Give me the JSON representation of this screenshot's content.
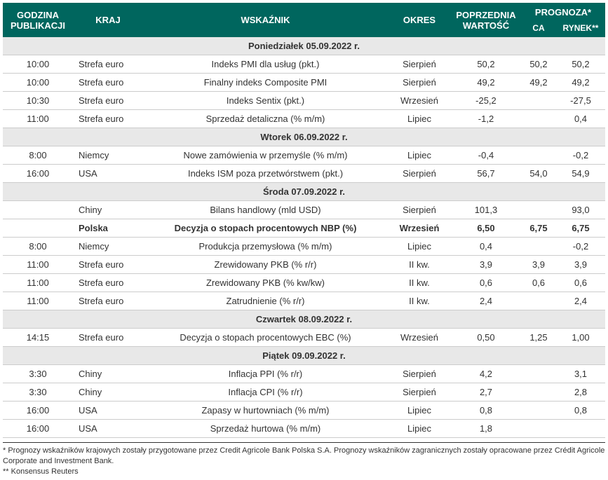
{
  "header": {
    "godzina": "GODZINA PUBLIKACJI",
    "kraj": "KRAJ",
    "wskaznik": "WSKAŹNIK",
    "okres": "OKRES",
    "poprzednia": "POPRZEDNIA WARTOŚĆ",
    "prognoza": "PROGNOZA*",
    "ca": "CA",
    "rynek": "RYNEK**"
  },
  "column_widths": {
    "godzina": "100px",
    "kraj": "100px",
    "wskaznik": "auto",
    "okres": "90px",
    "poprzednia": "100px",
    "ca": "50px",
    "rynek": "70px"
  },
  "colors": {
    "header_bg": "#00665e",
    "header_fg": "#ffffff",
    "section_bg": "#e8e8e8",
    "row_border": "#cccccc",
    "text": "#333333"
  },
  "sections": [
    {
      "title": "Poniedziałek 05.09.2022 r.",
      "rows": [
        {
          "godzina": "10:00",
          "kraj": "Strefa euro",
          "wskaznik": "Indeks PMI dla usług (pkt.)",
          "okres": "Sierpień",
          "poprzednia": "50,2",
          "ca": "50,2",
          "rynek": "50,2",
          "bold": false
        },
        {
          "godzina": "10:00",
          "kraj": "Strefa euro",
          "wskaznik": "Finalny indeks Composite PMI",
          "okres": "Sierpień",
          "poprzednia": "49,2",
          "ca": "49,2",
          "rynek": "49,2",
          "bold": false
        },
        {
          "godzina": "10:30",
          "kraj": "Strefa euro",
          "wskaznik": "Indeks Sentix (pkt.)",
          "okres": "Wrzesień",
          "poprzednia": "-25,2",
          "ca": "",
          "rynek": "-27,5",
          "bold": false
        },
        {
          "godzina": "11:00",
          "kraj": "Strefa euro",
          "wskaznik": "Sprzedaż detaliczna (% m/m)",
          "okres": "Lipiec",
          "poprzednia": "-1,2",
          "ca": "",
          "rynek": "0,4",
          "bold": false
        }
      ]
    },
    {
      "title": "Wtorek 06.09.2022 r.",
      "rows": [
        {
          "godzina": "8:00",
          "kraj": "Niemcy",
          "wskaznik": "Nowe zamówienia w przemyśle (% m/m)",
          "okres": "Lipiec",
          "poprzednia": "-0,4",
          "ca": "",
          "rynek": "-0,2",
          "bold": false
        },
        {
          "godzina": "16:00",
          "kraj": "USA",
          "wskaznik": "Indeks ISM poza przetwórstwem (pkt.)",
          "okres": "Sierpień",
          "poprzednia": "56,7",
          "ca": "54,0",
          "rynek": "54,9",
          "bold": false
        }
      ]
    },
    {
      "title": "Środa 07.09.2022 r.",
      "rows": [
        {
          "godzina": "",
          "kraj": "Chiny",
          "wskaznik": "Bilans handlowy (mld USD)",
          "okres": "Sierpień",
          "poprzednia": "101,3",
          "ca": "",
          "rynek": "93,0",
          "bold": false
        },
        {
          "godzina": "",
          "kraj": "Polska",
          "wskaznik": "Decyzja o stopach procentowych NBP (%)",
          "okres": "Wrzesień",
          "poprzednia": "6,50",
          "ca": "6,75",
          "rynek": "6,75",
          "bold": true
        },
        {
          "godzina": "8:00",
          "kraj": "Niemcy",
          "wskaznik": "Produkcja przemysłowa (% m/m)",
          "okres": "Lipiec",
          "poprzednia": "0,4",
          "ca": "",
          "rynek": "-0,2",
          "bold": false
        },
        {
          "godzina": "11:00",
          "kraj": "Strefa euro",
          "wskaznik": "Zrewidowany PKB (% r/r)",
          "okres": "II kw.",
          "poprzednia": "3,9",
          "ca": "3,9",
          "rynek": "3,9",
          "bold": false
        },
        {
          "godzina": "11:00",
          "kraj": "Strefa euro",
          "wskaznik": "Zrewidowany PKB (% kw/kw)",
          "okres": "II kw.",
          "poprzednia": "0,6",
          "ca": "0,6",
          "rynek": "0,6",
          "bold": false
        },
        {
          "godzina": "11:00",
          "kraj": "Strefa euro",
          "wskaznik": "Zatrudnienie (% r/r)",
          "okres": "II kw.",
          "poprzednia": "2,4",
          "ca": "",
          "rynek": "2,4",
          "bold": false
        }
      ]
    },
    {
      "title": "Czwartek 08.09.2022 r.",
      "rows": [
        {
          "godzina": "14:15",
          "kraj": "Strefa euro",
          "wskaznik": "Decyzja o stopach procentowych EBC (%)",
          "okres": "Wrzesień",
          "poprzednia": "0,50",
          "ca": "1,25",
          "rynek": "1,00",
          "bold": false
        }
      ]
    },
    {
      "title": "Piątek 09.09.2022 r.",
      "rows": [
        {
          "godzina": "3:30",
          "kraj": "Chiny",
          "wskaznik": "Inflacja PPI (% r/r)",
          "okres": "Sierpień",
          "poprzednia": "4,2",
          "ca": "",
          "rynek": "3,1",
          "bold": false
        },
        {
          "godzina": "3:30",
          "kraj": "Chiny",
          "wskaznik": "Inflacja CPI (% r/r)",
          "okres": "Sierpień",
          "poprzednia": "2,7",
          "ca": "",
          "rynek": "2,8",
          "bold": false
        },
        {
          "godzina": "16:00",
          "kraj": "USA",
          "wskaznik": "Zapasy w hurtowniach (% m/m)",
          "okres": "Lipiec",
          "poprzednia": "0,8",
          "ca": "",
          "rynek": "0,8",
          "bold": false
        },
        {
          "godzina": "16:00",
          "kraj": "USA",
          "wskaznik": "Sprzedaż hurtowa (% m/m)",
          "okres": "Lipiec",
          "poprzednia": "1,8",
          "ca": "",
          "rynek": "",
          "bold": false
        }
      ]
    }
  ],
  "footnotes": {
    "note1": "* Prognozy wskaźników krajowych zostały przygotowane przez Credit Agricole Bank Polska S.A. Prognozy wskaźników zagranicznych zostały opracowane przez Crédit Agricole Corporate and Investment Bank.",
    "note2": "** Konsensus Reuters"
  }
}
